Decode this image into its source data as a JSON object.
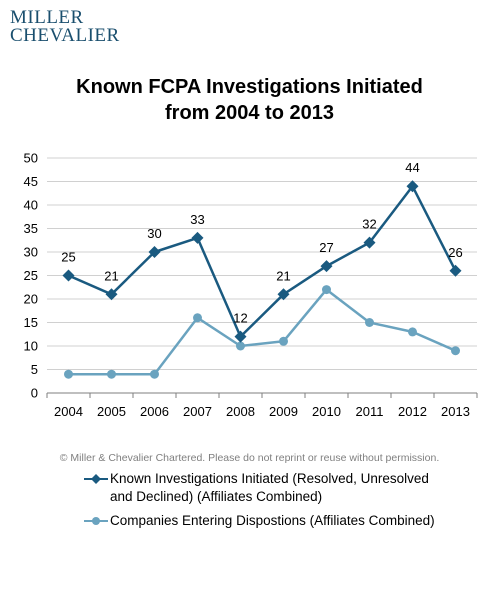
{
  "logo": {
    "line1": "MILLER",
    "line2": "CHEVALIER"
  },
  "copyright": "© Miller & Chevalier Chartered. Please do not reprint or reuse without permission.",
  "colors": {
    "series1": "#1a5a80",
    "series2": "#6aa3bf",
    "grid": "#d0d0d0",
    "axis": "#7f7f7f"
  },
  "chart_data": {
    "type": "line",
    "title_line1": "Known FCPA Investigations Initiated",
    "title_line2": "from 2004 to 2013",
    "x": [
      "2004",
      "2005",
      "2006",
      "2007",
      "2008",
      "2009",
      "2010",
      "2011",
      "2012",
      "2013"
    ],
    "ylim": [
      0,
      50
    ],
    "yticks": [
      0,
      5,
      10,
      15,
      20,
      25,
      30,
      35,
      40,
      45,
      50
    ],
    "grid": true,
    "legend_position": "bottom",
    "series": [
      {
        "name": "Known Investigations Initiated (Resolved, Unresolved and Declined) (Affiliates Combined)",
        "legend_line1": "Known Investigations Initiated (Resolved, Unresolved",
        "legend_line2": "and Declined) (Affiliates Combined)",
        "values": [
          25,
          21,
          30,
          33,
          12,
          21,
          27,
          32,
          44,
          26
        ],
        "marker": "diamond",
        "data_labels": true
      },
      {
        "name": "Companies Entering Dispostions (Affiliates Combined)",
        "legend_line1": "Companies Entering Dispostions (Affiliates Combined)",
        "values": [
          4,
          4,
          4,
          16,
          10,
          11,
          22,
          15,
          13,
          9
        ],
        "marker": "circle",
        "data_labels": false
      }
    ]
  }
}
